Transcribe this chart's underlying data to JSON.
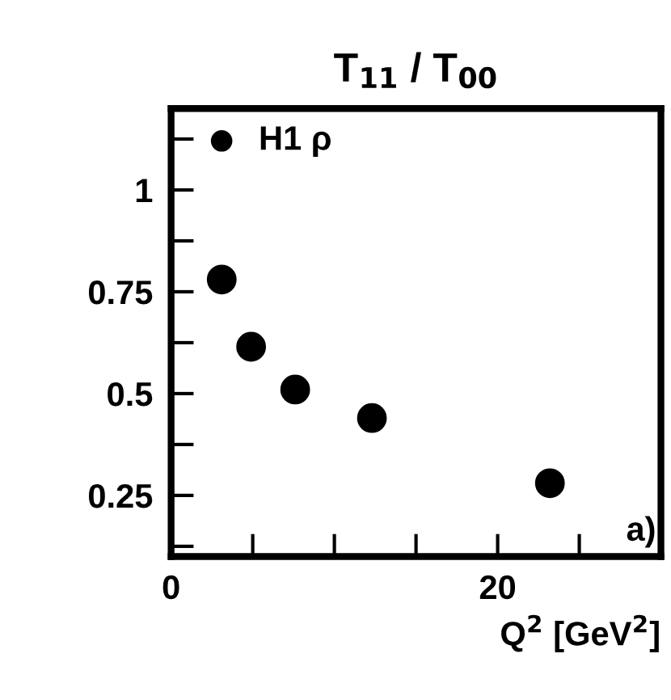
{
  "chart_data": {
    "type": "scatter",
    "title": "T$_{11}$ / T$_{00}$",
    "xlabel": "Q$^{2}$ [GeV$^{2}$]",
    "x": [
      3.1,
      4.9,
      7.6,
      12.3,
      23.2
    ],
    "series": [
      {
        "name": "H1 ρ",
        "color": "#000000",
        "values": [
          0.78,
          0.615,
          0.51,
          0.44,
          0.28
        ]
      }
    ],
    "xlim": [
      0,
      30
    ],
    "ylim": [
      0.1,
      1.2
    ],
    "xticks": [
      0,
      {
        "value": 5,
        "label": null
      },
      {
        "value": 10,
        "label": null
      },
      {
        "value": 15,
        "label": null
      },
      20,
      {
        "value": 25,
        "label": null
      }
    ],
    "yticks": [
      {
        "value": 0.125,
        "label": null
      },
      0.25,
      {
        "value": 0.375,
        "label": null
      },
      0.5,
      {
        "value": 0.625,
        "label": null
      },
      0.75,
      {
        "value": 0.875,
        "label": null
      },
      1,
      {
        "value": 1.125,
        "label": null
      }
    ],
    "marker": "circle",
    "legend": "top left",
    "grid": false,
    "annotations": [
      "a)"
    ]
  }
}
